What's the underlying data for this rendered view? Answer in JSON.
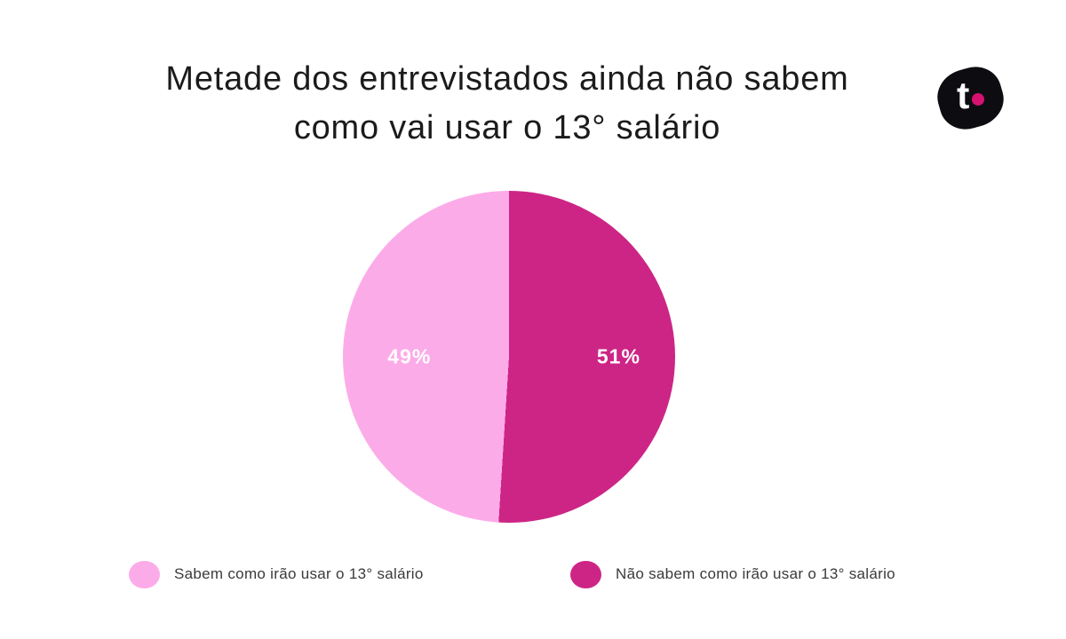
{
  "page": {
    "background": "#ffffff"
  },
  "header": {
    "title_line1": "Metade dos entrevistados ainda não sabem",
    "title_line2": "como vai usar o 13° salário",
    "logo": {
      "letter": "t",
      "blob_color": "#0d0d11",
      "dot_color": "#d6126f"
    }
  },
  "chart_data": {
    "type": "pie",
    "title": "Metade dos entrevistados ainda não sabem como vai usar o 13° salário",
    "slices": [
      {
        "label": "Sabem como irão usar o 13° salário",
        "value": 49,
        "data_label": "49%",
        "color": "#fcabe9"
      },
      {
        "label": "Não sabem como irão usar o 13° salário",
        "value": 51,
        "data_label": "51%",
        "color": "#cd2586"
      }
    ],
    "start_angle_deg": 0,
    "direction": "counterclockwise",
    "legend_position": "bottom",
    "data_label_color": "#ffffff"
  }
}
